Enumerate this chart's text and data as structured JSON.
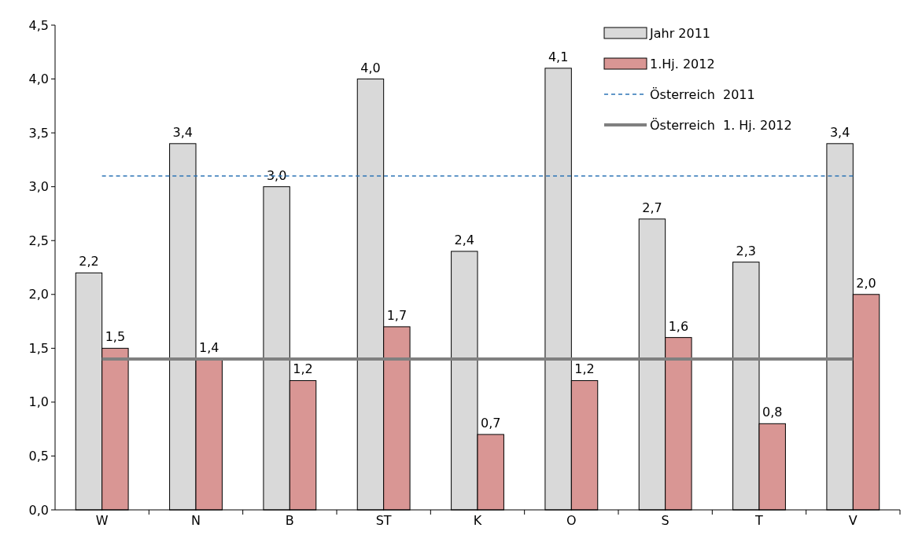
{
  "chart_data": {
    "type": "bar",
    "categories": [
      "W",
      "N",
      "B",
      "ST",
      "K",
      "O",
      "S",
      "T",
      "V"
    ],
    "series": [
      {
        "name": "Jahr 2011",
        "color": "#d9d9d9",
        "values": [
          2.2,
          3.4,
          3.0,
          4.0,
          2.4,
          4.1,
          2.7,
          2.3,
          3.4
        ],
        "value_labels": [
          "2,2",
          "3,4",
          "3,0",
          "4,0",
          "2,4",
          "4,1",
          "2,7",
          "2,3",
          "3,4"
        ]
      },
      {
        "name": "1.Hj. 2012",
        "color": "#d99694",
        "values": [
          1.5,
          1.4,
          1.2,
          1.7,
          0.7,
          1.2,
          1.6,
          0.8,
          2.0
        ],
        "value_labels": [
          "1,5",
          "1,4",
          "1,2",
          "1,7",
          "0,7",
          "1,2",
          "1,6",
          "0,8",
          "2,0"
        ]
      },
      {
        "name": "Österreich  2011",
        "type": "line",
        "color": "#2e75b6",
        "line_style": "dashed",
        "values": [
          3.1,
          3.1,
          3.1,
          3.1,
          3.1,
          3.1,
          3.1,
          3.1,
          3.1
        ]
      },
      {
        "name": "Österreich  1. Hj. 2012",
        "type": "line",
        "color": "#808080",
        "line_style": "solid",
        "values": [
          1.4,
          1.4,
          1.4,
          1.4,
          1.4,
          1.4,
          1.4,
          1.4,
          1.4
        ]
      }
    ],
    "ylim": [
      0,
      4.5
    ],
    "yticks": [
      {
        "value": 0,
        "label": "0,0"
      },
      {
        "value": 0.5,
        "label": "0,5"
      },
      {
        "value": 1,
        "label": "1,0"
      },
      {
        "value": 1.5,
        "label": "1,5"
      },
      {
        "value": 2,
        "label": "2,0"
      },
      {
        "value": 2.5,
        "label": "2,5"
      },
      {
        "value": 3,
        "label": "3,0"
      },
      {
        "value": 3.5,
        "label": "3,5"
      },
      {
        "value": 4,
        "label": "4,0"
      },
      {
        "value": 4.5,
        "label": "4,5"
      }
    ],
    "grid": false,
    "legend": "top right"
  }
}
